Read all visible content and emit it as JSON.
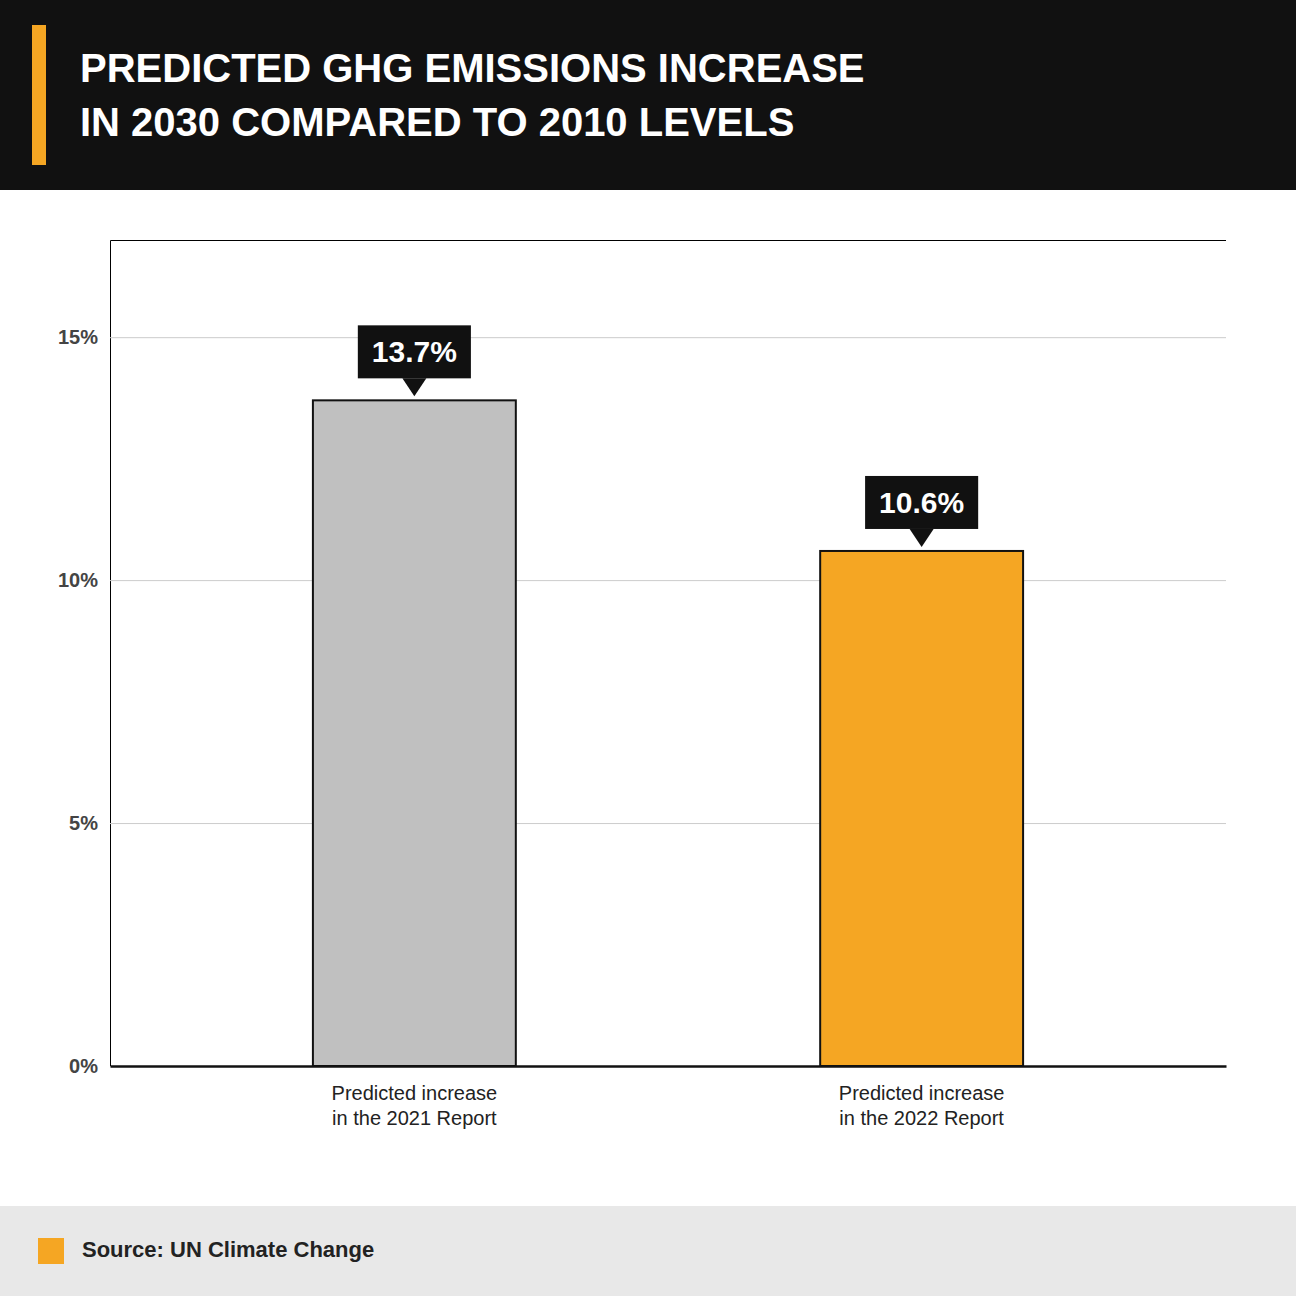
{
  "chart_data": {
    "type": "bar",
    "title": "PREDICTED GHG EMISSIONS INCREASE\nIN 2030 COMPARED TO 2010 LEVELS",
    "categories": [
      "Predicted increase\nin the 2021 Report",
      "Predicted increase\nin the 2022 Report"
    ],
    "values": [
      13.7,
      10.6
    ],
    "value_labels": [
      "13.7%",
      "10.6%"
    ],
    "data_labels": true,
    "colors": [
      "#c0c0c0",
      "#f5a623"
    ],
    "ylim": [
      0,
      17
    ],
    "yticks": [
      {
        "value": 0,
        "label": "0%"
      },
      {
        "value": 5,
        "label": "5%"
      },
      {
        "value": 10,
        "label": "10%"
      },
      {
        "value": 15,
        "label": "15%"
      }
    ],
    "grid": true,
    "source": "Source: UN Climate Change"
  }
}
